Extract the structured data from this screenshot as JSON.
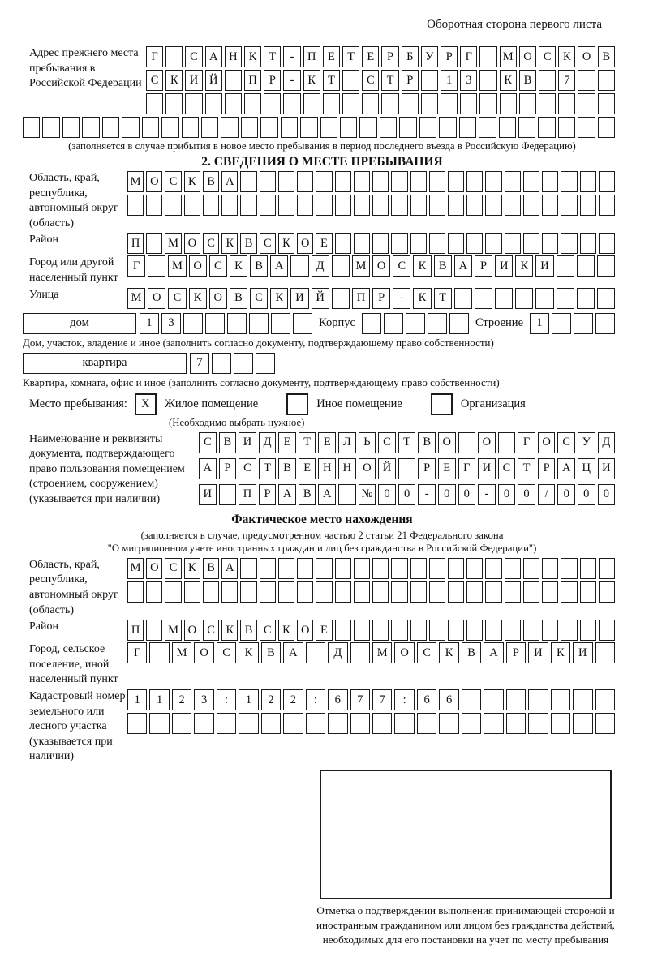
{
  "page": {
    "header_note": "Оборотная сторона первого листа"
  },
  "prev_address": {
    "label": "Адрес прежнего места пребывания в Российской Федерации",
    "rows": [
      {
        "cells": 24,
        "value": "Г САНКТ-ПЕТЕРБУРГ МОСКОВ"
      },
      {
        "cells": 24,
        "value": "СКИЙ ПР-КТ СТР 13 КВ 7"
      },
      {
        "cells": 24,
        "value": ""
      },
      {
        "cells": 30,
        "value": ""
      }
    ],
    "note": "(заполняется в случае прибытия в новое место пребывания в период последнего въезда в Российскую Федерацию)"
  },
  "section2": {
    "title": "2. СВЕДЕНИЯ О МЕСТЕ ПРЕБЫВАНИЯ",
    "region": {
      "label": "Область, край, республика, автономный округ (область)",
      "row1": {
        "cells": 26,
        "value": "МОСКВА"
      },
      "row2": {
        "cells": 26,
        "value": ""
      }
    },
    "district": {
      "label": "Район",
      "row": {
        "cells": 26,
        "value": "П МОСКВСКОЕ"
      }
    },
    "city": {
      "label": "Город или другой населенный пункт",
      "row": {
        "cells": 24,
        "value": "Г МОСКВА Д МОСКВАРИКИ"
      }
    },
    "street": {
      "label": "Улица",
      "row": {
        "cells": 24,
        "value": "МОСКОВСКИЙ ПР-КТ"
      }
    },
    "house": {
      "box_label": "дом",
      "row": {
        "cells": 8,
        "value": "13"
      },
      "korpus_label": "Корпус",
      "korpus_row": {
        "cells": 5,
        "value": ""
      },
      "stroenie_label": "Строение",
      "stroenie_row": {
        "cells": 4,
        "value": "1"
      }
    },
    "house_note": "Дом, участок, владение и иное (заполнить согласно документу, подтверждающему право собственности)",
    "apartment": {
      "box_label": "квартира",
      "row": {
        "cells": 4,
        "value": "7"
      }
    },
    "apartment_note": "Квартира, комната, офис и иное (заполнить согласно документу, подтверждающему право собственности)",
    "place_type": {
      "label": "Место пребывания:",
      "options": [
        {
          "label": "Жилое помещение",
          "checkbox": {
            "cells": 1,
            "value": "X"
          }
        },
        {
          "label": "Иное помещение",
          "checkbox": {
            "cells": 1,
            "value": ""
          }
        },
        {
          "label": "Организация",
          "checkbox": {
            "cells": 1,
            "value": ""
          }
        }
      ],
      "note": "(Необходимо выбрать нужное)"
    },
    "document": {
      "label": "Наименование и реквизиты документа, подтверждающего право пользования помещением (строением, сооружением) (указывается при наличии)",
      "rows": [
        {
          "cells": 21,
          "value": "СВИДЕТЕЛЬСТВО О ГОСУД"
        },
        {
          "cells": 21,
          "value": "АРСТВЕННОЙ РЕГИСТРАЦИ"
        },
        {
          "cells": 21,
          "value": "И ПРАВА №00-00-00/000"
        }
      ]
    }
  },
  "actual_location": {
    "title": "Фактическое место нахождения",
    "note_line1": "(заполняется в случае, предусмотренном частью 2 статьи 21 Федерального закона",
    "note_line2": "\"О миграционном учете иностранных граждан и лиц без гражданства в Российской Федерации\")",
    "region": {
      "label": "Область, край, республика, автономный округ (область)",
      "row1": {
        "cells": 26,
        "value": "МОСКВА"
      },
      "row2": {
        "cells": 26,
        "value": ""
      }
    },
    "district": {
      "label": "Район",
      "row": {
        "cells": 26,
        "value": "П МОСКВСКОЕ"
      }
    },
    "city": {
      "label": "Город, сельское поселение, иной населенный пункт",
      "row": {
        "cells": 22,
        "value": "Г МОСКВА Д МОСКВАРИКИ"
      }
    },
    "cadastral": {
      "label": "Кадастровый номер земельного или лесного участка (указывается при наличии)",
      "row1": {
        "cells": 22,
        "value": "1123:122:677:66"
      },
      "row2": {
        "cells": 22,
        "value": ""
      }
    }
  },
  "confirmation": {
    "caption": "Отметка о подтверждении выполнения принимающей стороной и иностранным гражданином или лицом без гражданства действий, необходимых для его постановки на учет по месту пребывания"
  }
}
